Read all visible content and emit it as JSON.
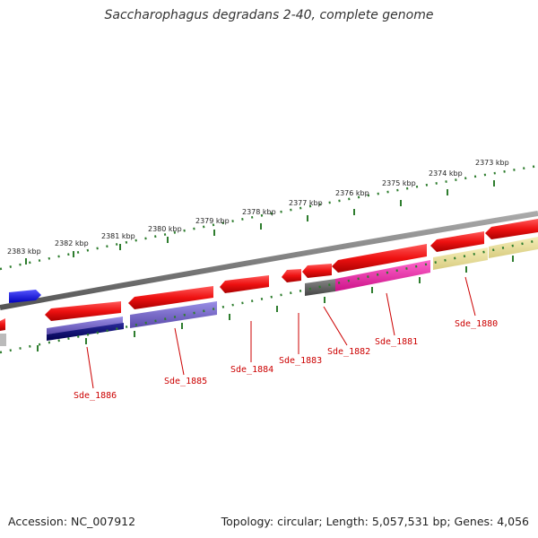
{
  "title": "Saccharophagus degradans 2-40, complete genome",
  "footer": {
    "accession": "Accession: NC_007912",
    "summary": "Topology: circular; Length: 5,057,531 bp; Genes: 4,056"
  },
  "scale_labels": [
    "2383 kbp",
    "2382 kbp",
    "2381 kbp",
    "2380 kbp",
    "2379 kbp",
    "2378 kbp",
    "2377 kbp",
    "2376 kbp",
    "2375 kbp",
    "2374 kbp",
    "2373 kbp"
  ],
  "gene_labels": [
    "Sde_1886",
    "Sde_1885",
    "Sde_1884",
    "Sde_1883",
    "Sde_1882",
    "Sde_1881",
    "Sde_1880"
  ],
  "colors": {
    "backbone": "#808080",
    "ticks": "#2e7d2e",
    "cds_red": "#ee1111",
    "label_red": "#cc0000",
    "blue": "#1111ee",
    "purple": "#7766cc",
    "navy": "#11116e",
    "magenta": "#ee22aa",
    "yellow": "#eee49a",
    "dark_gray": "#666666"
  }
}
